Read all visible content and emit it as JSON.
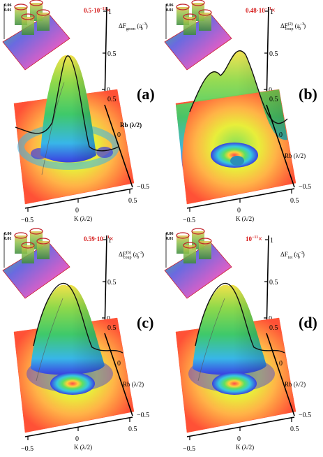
{
  "panels": [
    {
      "id": "a",
      "letter": "(a)",
      "scale_text": "0.5·10",
      "scale_exp": "−11",
      "scale_mult": "×",
      "zlabel": "ΔF",
      "zlabel_sub": "geom",
      "zunit_open": "(a",
      "zunit_sub": "0",
      "zunit_sup": "−3",
      "zunit_close": ")",
      "z_ticks": [
        "1",
        "0.5",
        "0"
      ],
      "rb_label": "Rb (λ/2)",
      "rb_ticks": [
        "0.5",
        "0",
        "−0.5"
      ],
      "k_label": "K (λ/2)",
      "k_ticks": [
        "−0.5",
        "0",
        "0.5"
      ],
      "inset_ticks": [
        "0.06",
        "0.01"
      ]
    },
    {
      "id": "b",
      "letter": "(b)",
      "scale_text": "0.48·10",
      "scale_exp": "−11",
      "scale_mult": "×",
      "zlabel": "ΔF",
      "zlabel_sub": "coup",
      "zlabel_sup": "(2)",
      "zunit_open": "(a",
      "zunit_sub": "0",
      "zunit_sup": "−3",
      "zunit_close": ")",
      "z_ticks": [
        "1",
        "0.5",
        "0"
      ],
      "rb_label": "Rb (λ/2)",
      "rb_ticks": [
        "0.5",
        "0",
        "−0.5"
      ],
      "k_label": "K (λ/2)",
      "k_ticks": [
        "−0.5",
        "0",
        "0.5"
      ],
      "inset_ticks": [
        "0.06",
        "0.01"
      ]
    },
    {
      "id": "c",
      "letter": "(c)",
      "scale_text": "0.59·10",
      "scale_exp": "−11",
      "scale_mult": "×",
      "zlabel": "ΔF",
      "zlabel_sub": "coup",
      "zlabel_sup": "(6)",
      "zunit_open": "(a",
      "zunit_sub": "0",
      "zunit_sup": "−3",
      "zunit_close": ")",
      "z_ticks": [
        "1",
        "0.5",
        "0"
      ],
      "rb_label": "Rb (λ/2)",
      "rb_ticks": [
        "0.5",
        "0",
        "−0.5"
      ],
      "k_label": "K (λ/2)",
      "k_ticks": [
        "−0.5",
        "0",
        "0.5"
      ],
      "inset_ticks": [
        "0.06",
        "0.01"
      ]
    },
    {
      "id": "d",
      "letter": "(d)",
      "scale_text": "10",
      "scale_exp": "−11",
      "scale_mult": "×",
      "zlabel": "ΔF",
      "zlabel_sub": "tot",
      "zunit_open": "(a",
      "zunit_sub": "0",
      "zunit_sup": "−3",
      "zunit_close": ")",
      "z_ticks": [
        "1",
        "0.5",
        "0"
      ],
      "rb_label": "Rb (λ/2)",
      "rb_ticks": [
        "0.5",
        "0",
        "−0.5"
      ],
      "k_label": "K (λ/2)",
      "k_ticks": [
        "−0.5",
        "0",
        "0.5"
      ],
      "inset_ticks": [
        "0.06",
        "0.01"
      ]
    }
  ],
  "colors": {
    "floor": "#ff5a3c",
    "peak": "#3c9a3c",
    "well": "#2e3ad0",
    "accent_red": "#d61c1c"
  }
}
